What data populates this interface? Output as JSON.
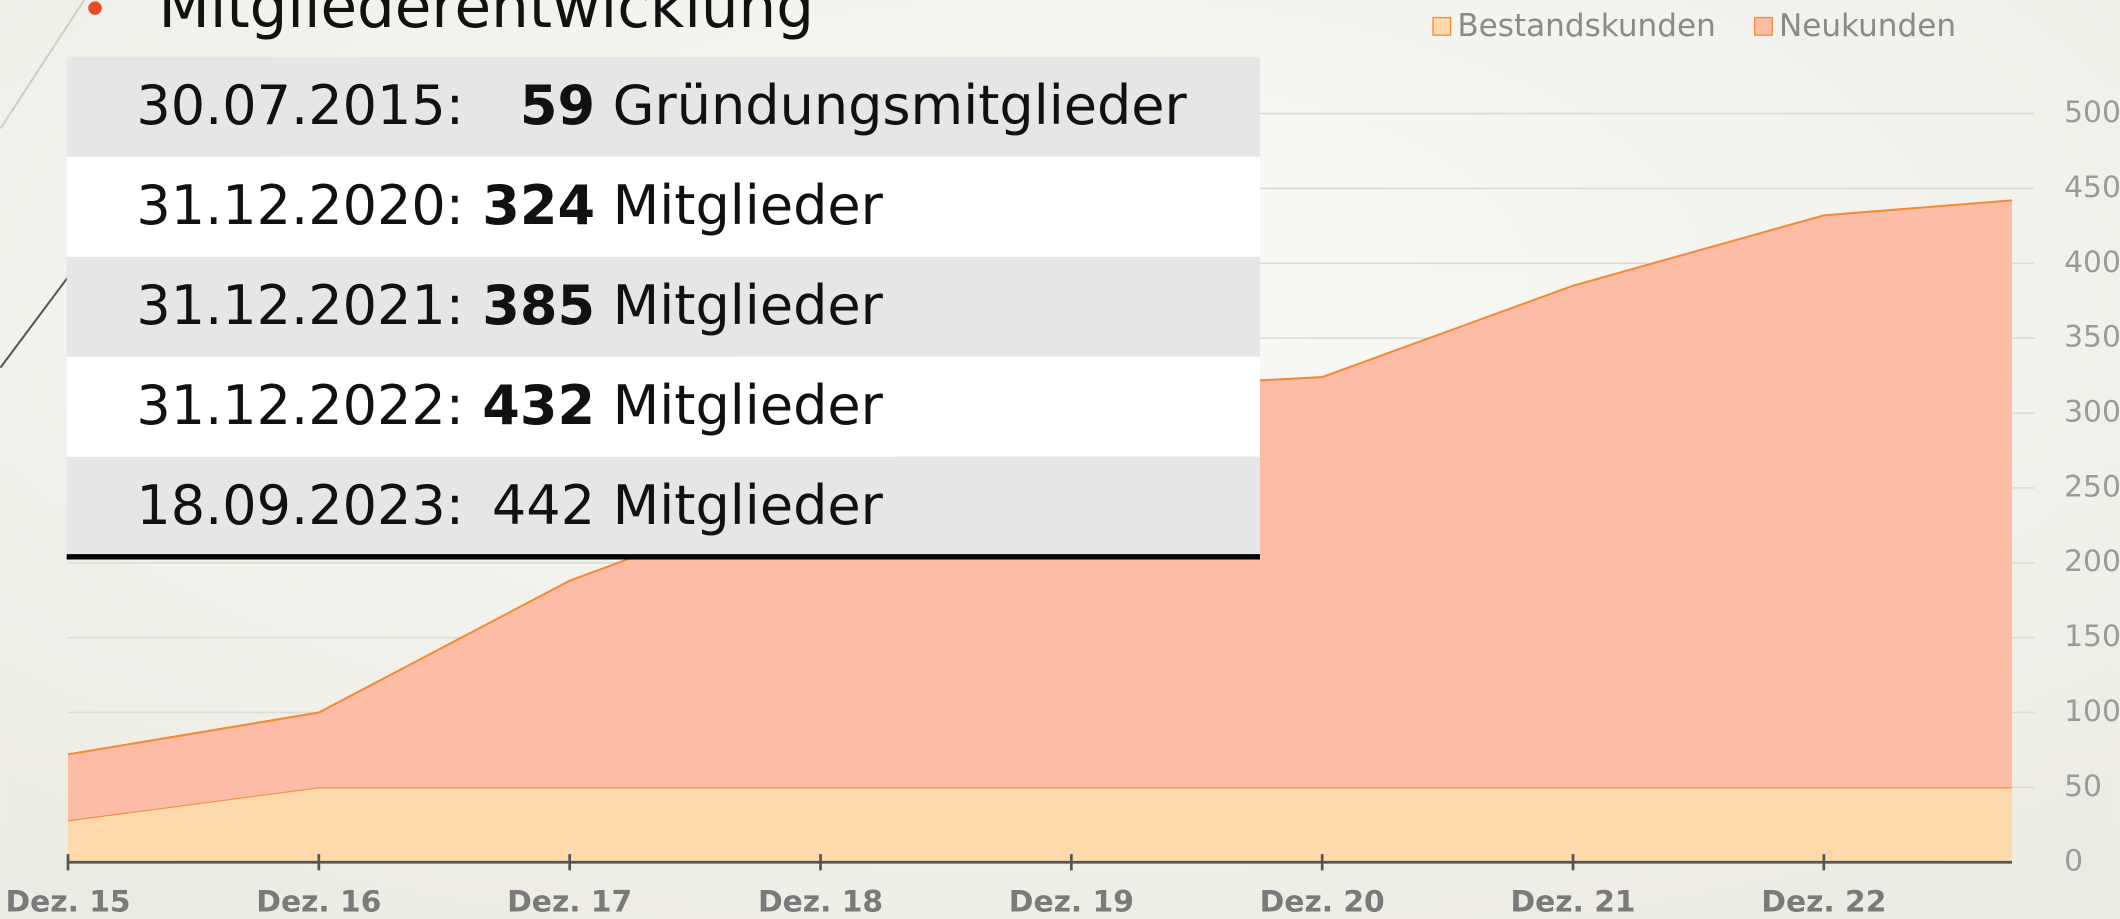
{
  "title": "Mitgliederentwicklung",
  "table": {
    "rows": [
      {
        "date": "30.07.2015:",
        "count": "59",
        "label": "Gründungsmitglieder",
        "bold": true
      },
      {
        "date": "31.12.2020:",
        "count": "324",
        "label": "Mitglieder",
        "bold": true
      },
      {
        "date": "31.12.2021:",
        "count": "385",
        "label": "Mitglieder",
        "bold": true
      },
      {
        "date": "31.12.2022:",
        "count": "432",
        "label": "Mitglieder",
        "bold": true
      },
      {
        "date": "18.09.2023:",
        "count": "442",
        "label": "Mitglieder",
        "bold": false
      }
    ]
  },
  "chart_data": {
    "type": "stacked_area",
    "categories": [
      "Dez. 15",
      "Dez. 16",
      "Dez. 17",
      "Dez. 18",
      "Dez. 19",
      "Dez. 20",
      "Dez. 21",
      "Dez. 22",
      null
    ],
    "series": [
      {
        "name": "Bestandskunden",
        "color": "#fdd9ac",
        "line_color": "#f28a3a",
        "values": [
          28,
          50,
          50,
          50,
          50,
          50,
          50,
          50,
          50
        ]
      },
      {
        "name": "Neukunden",
        "color": "#fdbca5",
        "line_color": "#f28a3a",
        "values": [
          44,
          50,
          138,
          200,
          265,
          274,
          335,
          382,
          392
        ]
      }
    ],
    "ylim": [
      0,
      500
    ],
    "yticks": [
      0,
      50,
      100,
      150,
      200,
      250,
      300,
      350,
      400,
      450,
      500
    ],
    "grid": true,
    "y_axis_side": "right",
    "legend": "top-right"
  }
}
